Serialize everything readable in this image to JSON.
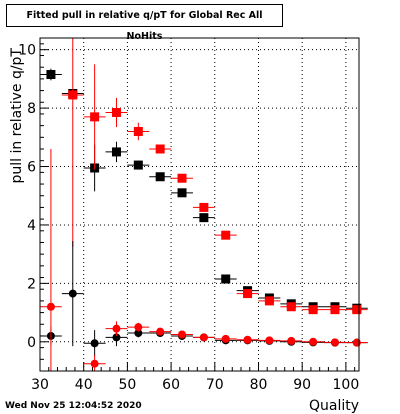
{
  "canvas": {
    "title": "Fitted pull in relative q/pT for Global Rec All NoHits",
    "footer": "Wed Nov 25 12:04:52 2020"
  },
  "colors": {
    "red": "#ff0000",
    "black": "#000000",
    "grid": "#000000"
  },
  "chart_data": {
    "type": "scatter",
    "title": "Fitted pull in relative q/pT for Global Rec All NoHits",
    "xlabel": "Quality",
    "ylabel": "pull in relative q/pT",
    "xlim": [
      30,
      103
    ],
    "ylim": [
      -1,
      10.4
    ],
    "xticks": [
      30,
      40,
      50,
      60,
      70,
      80,
      90,
      100
    ],
    "yticks": [
      0,
      2,
      4,
      6,
      8,
      10
    ],
    "grid": true,
    "series": [
      {
        "color": "#000000",
        "marker": "square",
        "x": [
          32.5,
          37.5,
          42.5,
          47.5,
          52.5,
          57.5,
          62.5,
          67.5,
          72.5,
          77.5,
          82.5,
          87.5,
          92.5,
          97.5,
          102.5
        ],
        "y": [
          9.15,
          8.5,
          5.95,
          6.5,
          6.05,
          5.65,
          5.1,
          4.25,
          2.15,
          1.75,
          1.5,
          1.3,
          1.2,
          1.2,
          1.15
        ],
        "yerr": [
          0.2,
          0.15,
          0.8,
          0.35,
          0.15,
          0.1,
          0.1,
          0.1,
          0.05,
          0.05,
          0.05,
          0.05,
          0.05,
          0.05,
          0.05
        ]
      },
      {
        "color": "#ff0000",
        "marker": "square",
        "x": [
          37.5,
          42.5,
          47.5,
          52.5,
          57.5,
          62.5,
          67.5,
          72.5,
          77.5,
          82.5,
          87.5,
          92.5,
          97.5,
          102.5
        ],
        "y": [
          8.45,
          7.7,
          7.85,
          7.2,
          6.6,
          5.6,
          4.6,
          3.65,
          1.65,
          1.4,
          1.2,
          1.1,
          1.1,
          1.1
        ],
        "yerr": [
          5.2,
          1.8,
          0.5,
          0.3,
          0.15,
          0.1,
          0.1,
          0.05,
          0.05,
          0.05,
          0.05,
          0.05,
          0.05,
          0.05
        ]
      },
      {
        "color": "#000000",
        "marker": "circle",
        "x": [
          32.5,
          37.5,
          42.5,
          47.5,
          52.5,
          57.5,
          62.5,
          67.5,
          72.5,
          77.5,
          82.5,
          87.5,
          92.5,
          97.5,
          102.5
        ],
        "y": [
          0.2,
          1.65,
          -0.05,
          0.15,
          0.3,
          0.3,
          0.2,
          0.15,
          0.05,
          0.05,
          0.03,
          0.0,
          -0.02,
          -0.03,
          -0.03
        ],
        "yerr": [
          0.3,
          1.8,
          0.45,
          0.3,
          0.15,
          0.1,
          0.05,
          0.05,
          0.03,
          0.03,
          0.03,
          0.03,
          0.03,
          0.03,
          0.03
        ]
      },
      {
        "color": "#ff0000",
        "marker": "circle",
        "x": [
          32.5,
          42.5,
          47.5,
          52.5,
          57.5,
          62.5,
          67.5,
          72.5,
          77.5,
          82.5,
          87.5,
          92.5,
          97.5,
          102.5
        ],
        "y": [
          1.2,
          -0.75,
          0.45,
          0.5,
          0.35,
          0.25,
          0.15,
          0.1,
          0.07,
          0.05,
          0.03,
          0.0,
          -0.02,
          -0.03
        ],
        "yerr": [
          5.4,
          0.3,
          0.25,
          0.15,
          0.1,
          0.05,
          0.05,
          0.03,
          0.03,
          0.03,
          0.03,
          0.03,
          0.03,
          0.03
        ]
      }
    ]
  }
}
